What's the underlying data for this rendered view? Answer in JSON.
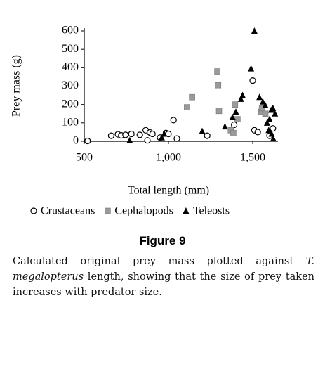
{
  "chart_data": {
    "type": "scatter",
    "ylabel": "Prey mass (g)",
    "xlabel": "Total length (mm)",
    "xlim": [
      500,
      1650
    ],
    "ylim": [
      0,
      600
    ],
    "xticks": [
      500,
      {
        "value": 1000,
        "label": "1,000"
      },
      {
        "value": 1500,
        "label": "1,500"
      }
    ],
    "yticks": [
      0,
      100,
      200,
      300,
      400,
      500,
      600
    ],
    "series": [
      {
        "name": "Crustaceans",
        "marker": "circle",
        "color": "#000000",
        "x": [
          520,
          660,
          700,
          720,
          745,
          780,
          830,
          865,
          875,
          890,
          905,
          950,
          985,
          1000,
          1030,
          1050,
          1230,
          1390,
          1500,
          1510,
          1530,
          1600,
          1620
        ],
        "values": [
          2,
          30,
          38,
          32,
          35,
          40,
          35,
          60,
          5,
          48,
          40,
          20,
          45,
          40,
          115,
          15,
          30,
          90,
          330,
          60,
          50,
          30,
          70
        ]
      },
      {
        "name": "Cephalopods",
        "marker": "square",
        "color": "#9a9a9a",
        "x": [
          1110,
          1140,
          1290,
          1295,
          1300,
          1370,
          1385,
          1395,
          1410,
          1550,
          1555,
          1575
        ],
        "values": [
          185,
          240,
          380,
          305,
          165,
          60,
          45,
          200,
          120,
          160,
          180,
          150
        ]
      },
      {
        "name": "Teleosts",
        "marker": "triangle",
        "color": "#000000",
        "x": [
          770,
          960,
          975,
          1200,
          1335,
          1380,
          1400,
          1430,
          1440,
          1490,
          1510,
          1540,
          1560,
          1575,
          1585,
          1595,
          1600,
          1610,
          1612,
          1620,
          1622,
          1632
        ],
        "values": [
          5,
          20,
          40,
          55,
          80,
          130,
          160,
          230,
          250,
          395,
          600,
          240,
          215,
          195,
          100,
          60,
          120,
          170,
          40,
          180,
          15,
          150
        ]
      }
    ]
  },
  "figure": {
    "label": "Figure 9",
    "caption": [
      "Calculated original prey mass plotted against ",
      "T. megalopterus",
      " length, showing that the size of prey taken increases with predator size."
    ]
  }
}
